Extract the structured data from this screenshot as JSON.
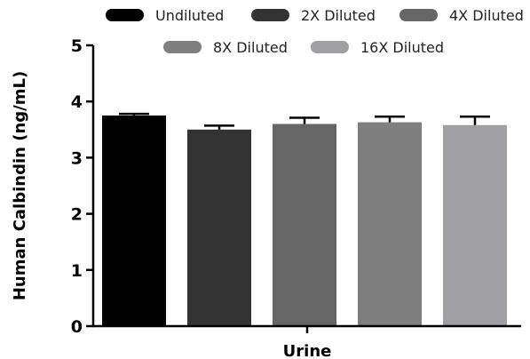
{
  "chart_data": {
    "type": "bar",
    "categories": [
      "Urine"
    ],
    "xlabel": "Urine",
    "ylabel": "Human Calbindin (ng/mL)",
    "ylim": [
      0,
      5
    ],
    "yticks": [
      "0",
      "1",
      "2",
      "3",
      "4",
      "5"
    ],
    "grid": false,
    "legend_position": "top",
    "series": [
      {
        "name": "Undiluted",
        "values": [
          3.75
        ],
        "error": [
          0.03
        ],
        "color": "#000000"
      },
      {
        "name": "2X Diluted",
        "values": [
          3.5
        ],
        "error": [
          0.07
        ],
        "color": "#333333"
      },
      {
        "name": "4X Diluted",
        "values": [
          3.6
        ],
        "error": [
          0.11
        ],
        "color": "#666666"
      },
      {
        "name": "8X Diluted",
        "values": [
          3.63
        ],
        "error": [
          0.1
        ],
        "color": "#7f7f7f"
      },
      {
        "name": "16X Diluted",
        "values": [
          3.58
        ],
        "error": [
          0.15
        ],
        "color": "#a0a0a4"
      }
    ]
  }
}
